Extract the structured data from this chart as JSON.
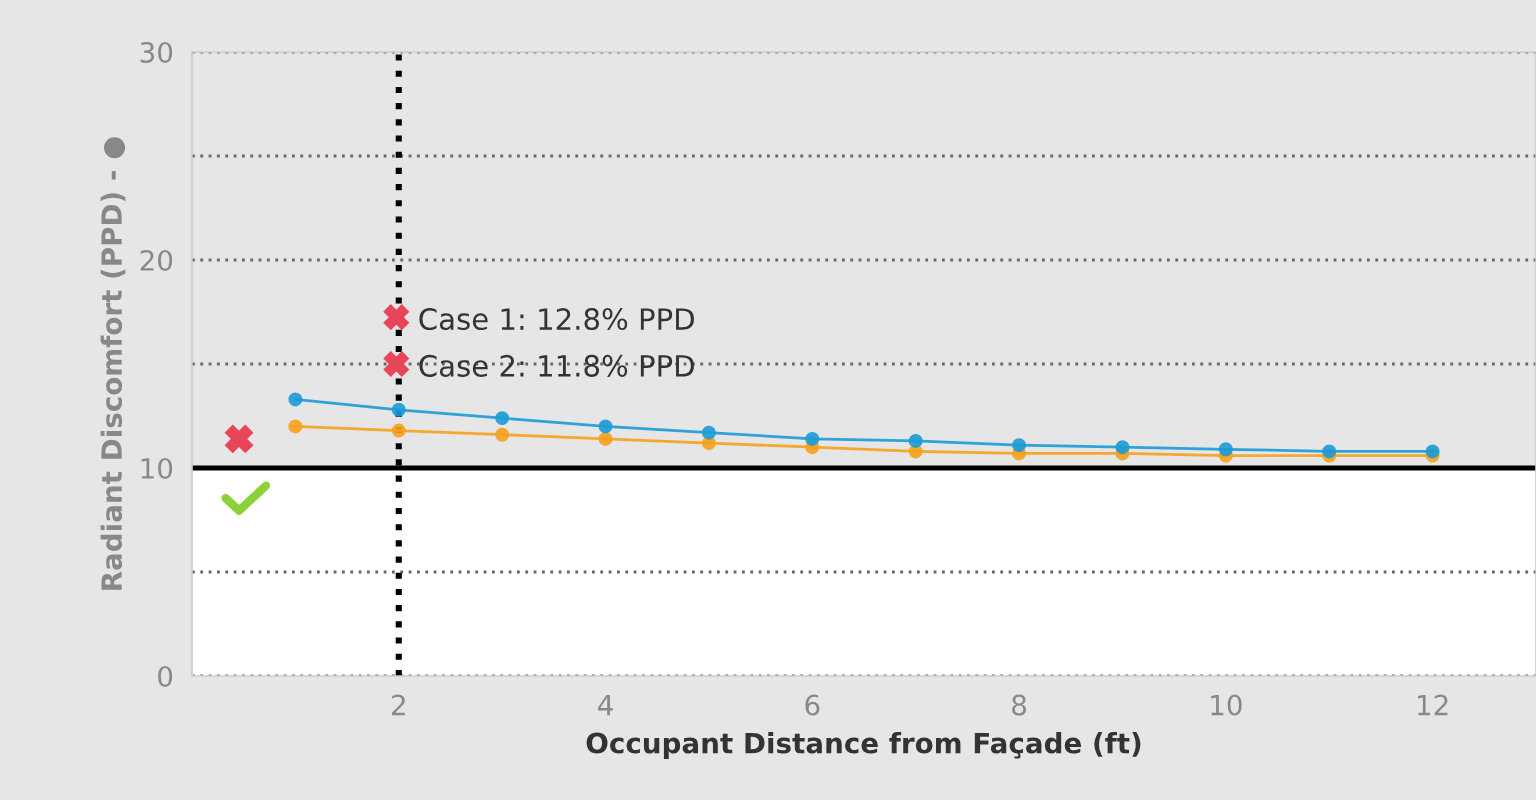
{
  "chart_data": {
    "type": "line",
    "xlabel": "Occupant Distance from Façade (ft)",
    "ylabel": "Radiant Discomfort (PPD) - ●",
    "x": [
      1,
      2,
      3,
      4,
      5,
      6,
      7,
      8,
      9,
      10,
      11,
      12
    ],
    "series": [
      {
        "color": "#1b9bd7",
        "values": [
          13.3,
          12.8,
          12.4,
          12.0,
          11.7,
          11.4,
          11.3,
          11.1,
          11.0,
          10.9,
          10.8,
          10.8
        ]
      },
      {
        "color": "#f5a11c",
        "values": [
          12.0,
          11.8,
          11.6,
          11.4,
          11.2,
          11.0,
          10.8,
          10.7,
          10.7,
          10.6,
          10.6,
          10.6
        ]
      }
    ],
    "annotations": [
      "Case 1: 12.8% PPD",
      "Case 2: 11.8% PPD"
    ],
    "xlim": [
      0,
      13
    ],
    "xticks": [
      2,
      4,
      6,
      8,
      10,
      12
    ],
    "ylim": [
      0,
      30
    ],
    "yticks": [
      0,
      {
        "value": 5,
        "label": null
      },
      10,
      {
        "value": 15,
        "label": null
      },
      20,
      {
        "value": 25,
        "label": null
      },
      30
    ],
    "ref_lines": [
      {
        "axis": "y",
        "value": 10,
        "color": "#000000",
        "line_style": "solid"
      },
      {
        "axis": "x",
        "value": 2,
        "color": "#000000",
        "line_style": "dotted"
      }
    ],
    "bands": [
      {
        "axis": "y",
        "from": 10,
        "to": 30,
        "color": "#e6e6e6"
      }
    ],
    "grid": "y",
    "marker": "circle",
    "line_style": "solid"
  }
}
